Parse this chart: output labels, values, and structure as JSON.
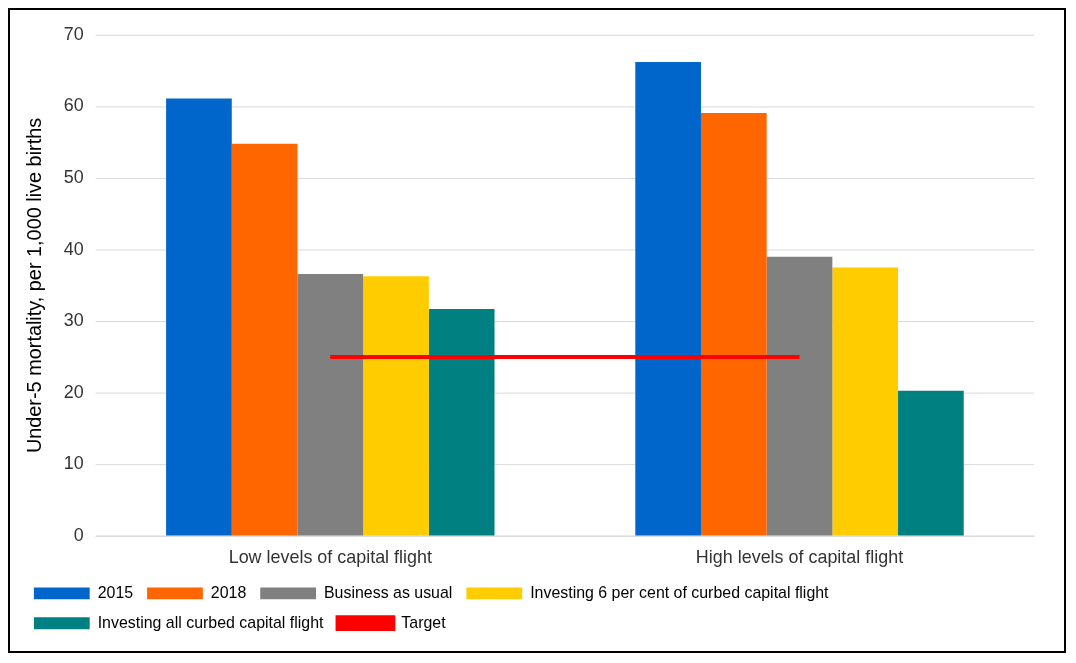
{
  "chart_data": {
    "type": "bar",
    "ylabel": "Under-5 mortality, per 1,000 live births",
    "categories": [
      "Low levels of capital flight",
      "High levels of capital flight"
    ],
    "series": [
      {
        "name": "2015",
        "color": "#0066cc",
        "values": [
          61.1,
          66.2
        ]
      },
      {
        "name": "2018",
        "color": "#ff6600",
        "values": [
          54.8,
          59.1
        ]
      },
      {
        "name": "Business as usual",
        "color": "#808080",
        "values": [
          36.6,
          39.0
        ]
      },
      {
        "name": "Investing 6 per cent of curbed capital flight",
        "color": "#ffcc00",
        "values": [
          36.3,
          37.5
        ]
      },
      {
        "name": "Investing all curbed capital flight",
        "color": "#008080",
        "values": [
          31.7,
          20.3
        ]
      },
      {
        "name": "Target",
        "type": "line",
        "color": "#ff0000",
        "values": [
          25,
          25
        ]
      }
    ],
    "ylim": [
      0,
      70
    ],
    "yticks": [
      0,
      10,
      20,
      30,
      40,
      50,
      60,
      70
    ],
    "grid": "y",
    "legend": "bottom",
    "marker": "none"
  }
}
